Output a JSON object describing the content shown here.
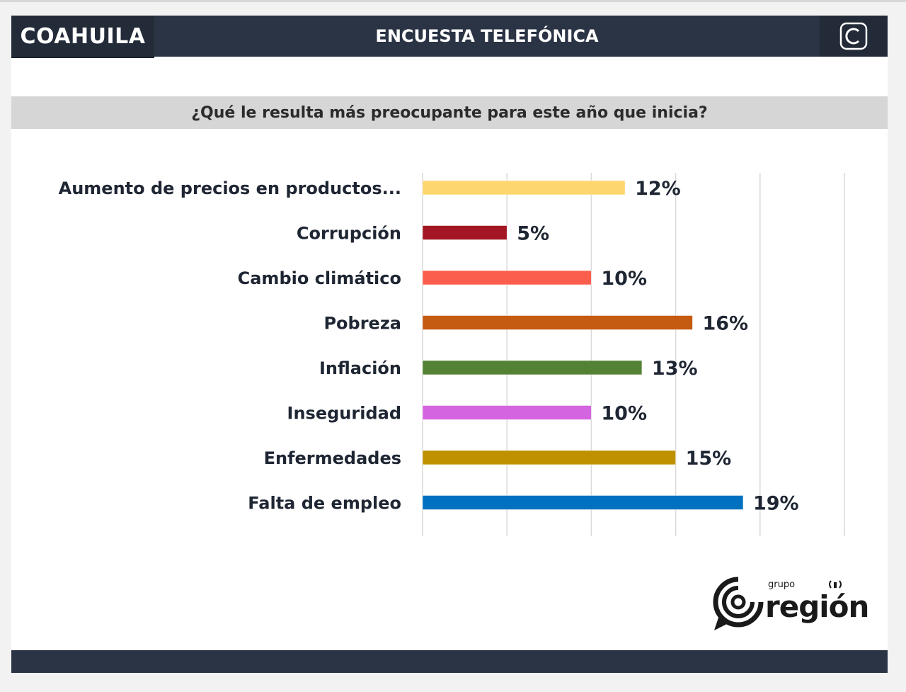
{
  "header": {
    "region": "COAHUILA",
    "title": "ENCUESTA TELEFÓNICA",
    "logo_icon": "c-logo-icon"
  },
  "question": "¿Qué le resulta más preocupante para este año que inicia?",
  "chart_data": {
    "type": "bar",
    "orientation": "horizontal",
    "title": "¿Qué le resulta más preocupante para este año que inicia?",
    "categories": [
      "Aumento de precios en productos...",
      "Corrupción",
      "Cambio climático",
      "Pobreza",
      "Inflación",
      "Inseguridad",
      "Enfermedades",
      "Falta de empleo"
    ],
    "values": [
      12,
      5,
      10,
      16,
      13,
      10,
      15,
      19
    ],
    "value_labels": [
      "12%",
      "5%",
      "10%",
      "16%",
      "13%",
      "10%",
      "15%",
      "19%"
    ],
    "colors": [
      "#fdd66e",
      "#a31624",
      "#fb5e4d",
      "#c55a11",
      "#548235",
      "#d564e0",
      "#bf9000",
      "#0070c0"
    ],
    "xlim": [
      0,
      25
    ],
    "grid": true,
    "unit": "%"
  },
  "brand": {
    "small": "grupo",
    "name": "región"
  }
}
